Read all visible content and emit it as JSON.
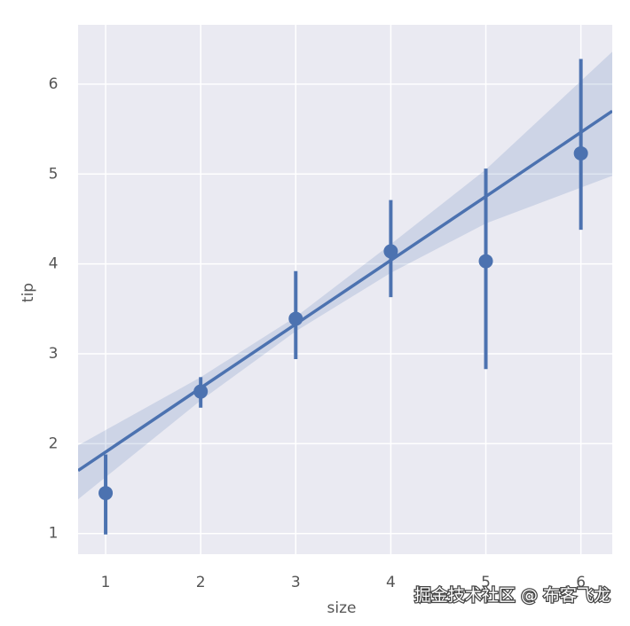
{
  "chart_data": {
    "type": "scatter",
    "x_label": "size",
    "y_label": "tip",
    "watermark": "掘金技术社区 @ 布客飞龙",
    "xlim": [
      0.71,
      6.33
    ],
    "ylim": [
      0.77,
      6.66
    ],
    "xticks": [
      1,
      2,
      3,
      4,
      5,
      6
    ],
    "yticks": [
      1,
      2,
      3,
      4,
      5,
      6
    ],
    "grid": true,
    "background": "#eaeaf2",
    "series": [
      {
        "color": "#4c72b0",
        "x": [
          1,
          2,
          3,
          4,
          5,
          6
        ],
        "values": [
          1.45,
          2.58,
          3.39,
          4.14,
          4.03,
          5.23
        ],
        "ci_low": [
          0.99,
          2.4,
          2.94,
          3.63,
          2.83,
          4.38
        ],
        "ci_high": [
          1.88,
          2.74,
          3.92,
          4.71,
          5.06,
          6.28
        ]
      },
      {
        "color": "#4c72b0",
        "x": [
          0.71,
          2,
          3,
          4,
          5,
          6.33
        ],
        "values": [
          1.7,
          2.62,
          3.33,
          4.04,
          4.75,
          5.7
        ],
        "band_low": [
          1.38,
          2.48,
          3.25,
          3.9,
          4.45,
          4.98
        ],
        "band_high": [
          1.98,
          2.74,
          3.41,
          4.22,
          5.05,
          6.36
        ]
      }
    ]
  }
}
